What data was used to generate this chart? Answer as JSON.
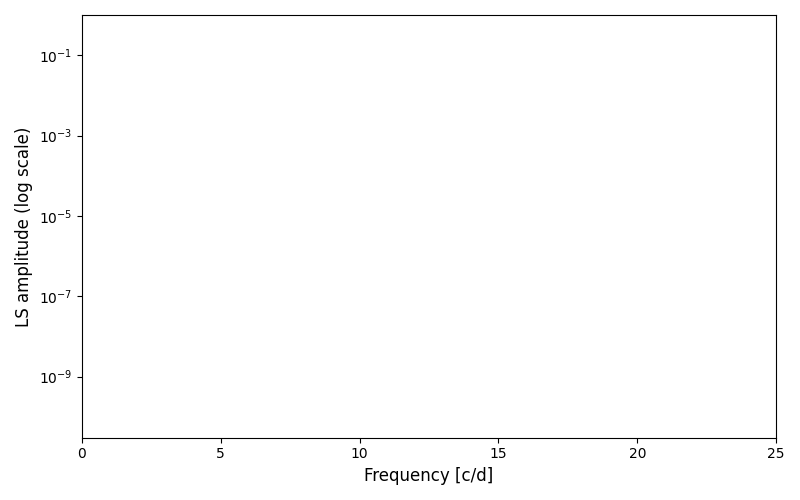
{
  "xlabel": "Frequency [c/d]",
  "ylabel": "LS amplitude (log scale)",
  "line_color": "blue",
  "xmin": 0,
  "xmax": 25,
  "ymin": 3e-11,
  "ymax": 1.0,
  "yscale": "log",
  "figsize": [
    8.0,
    5.0
  ],
  "dpi": 100,
  "seed": 42,
  "n_points": 5000
}
